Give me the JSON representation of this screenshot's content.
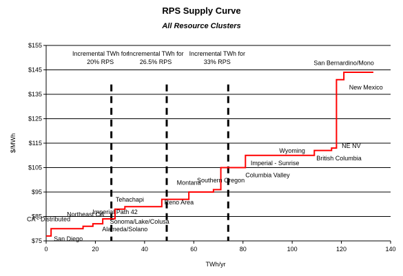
{
  "chart_data": {
    "type": "line",
    "title": "RPS Supply Curve",
    "subtitle": "All Resource Clusters",
    "xlabel": "TWh/yr",
    "ylabel": "$/MWh",
    "xlim": [
      0,
      140
    ],
    "ylim": [
      75,
      155
    ],
    "x_ticks": [
      0,
      20,
      40,
      60,
      80,
      100,
      120,
      140
    ],
    "y_ticks": [
      75,
      85,
      95,
      105,
      115,
      125,
      135,
      145,
      155
    ],
    "y_tick_labels": [
      "$75",
      "$85",
      "$95",
      "$105",
      "$115",
      "$125",
      "$135",
      "$145",
      "$155"
    ],
    "grid": "horizontal",
    "series": [
      {
        "color": "#ff0000",
        "x": [
          0,
          2,
          2,
          15,
          15,
          19,
          19,
          23,
          23,
          28,
          28,
          32,
          32,
          47,
          47,
          58,
          58,
          68,
          68,
          71,
          71,
          81,
          81,
          109,
          109,
          116,
          116,
          118,
          118,
          121,
          121,
          133
        ],
        "y": [
          77,
          77,
          80,
          80,
          81,
          81,
          82,
          82,
          84,
          84,
          88,
          88,
          89,
          89,
          92,
          92,
          95,
          95,
          96,
          96,
          105,
          105,
          110,
          110,
          112,
          112,
          113,
          113,
          141,
          141,
          144,
          144
        ]
      }
    ],
    "vlines": [
      {
        "x": 26.5,
        "label": "Incremental TWh for\n20% RPS"
      },
      {
        "x": 49,
        "label": "Incremental TWh for\n26.5% RPS"
      },
      {
        "x": 74,
        "label": "Incremental TWh for\n33% RPS"
      }
    ],
    "annotations": [
      {
        "text": "CA - Distributed",
        "x": 1,
        "y": 83
      },
      {
        "text": "San Diego",
        "x": 9,
        "y": 75
      },
      {
        "text": "Northeast CA",
        "x": 16,
        "y": 85
      },
      {
        "text": "Imperial Path 42",
        "x": 28,
        "y": 86
      },
      {
        "text": "Sonoma/Lake/Colusa",
        "x": 38,
        "y": 82
      },
      {
        "text": "Alameda/Solano",
        "x": 32,
        "y": 79
      },
      {
        "text": "Tehachapi",
        "x": 34,
        "y": 91
      },
      {
        "text": "Reno Area",
        "x": 54,
        "y": 90
      },
      {
        "text": "Montana",
        "x": 58,
        "y": 98
      },
      {
        "text": "Southern Oregon",
        "x": 71,
        "y": 99
      },
      {
        "text": "Columbia Valley",
        "x": 90,
        "y": 101
      },
      {
        "text": "Imperial - Sunrise",
        "x": 93,
        "y": 106
      },
      {
        "text": "Wyoming",
        "x": 100,
        "y": 111
      },
      {
        "text": "British Columbia",
        "x": 119,
        "y": 108
      },
      {
        "text": "NE NV",
        "x": 124,
        "y": 113
      },
      {
        "text": "New Mexico",
        "x": 130,
        "y": 137
      },
      {
        "text": "San Bernardino/Mono",
        "x": 121,
        "y": 147
      }
    ]
  }
}
